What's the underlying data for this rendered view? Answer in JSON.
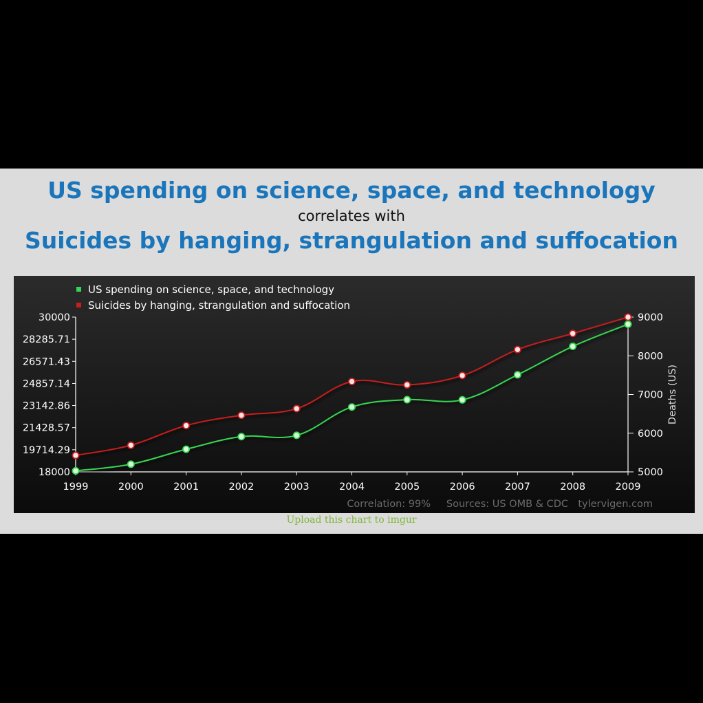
{
  "header": {
    "title1": "US spending on science, space, and technology",
    "subtitle": "correlates with",
    "title2": "Suicides by hanging, strangulation and suffocation"
  },
  "footer": {
    "upload_link": "Upload this chart to imgur"
  },
  "chart_data": {
    "type": "line",
    "x": [
      "1999",
      "2000",
      "2001",
      "2002",
      "2003",
      "2004",
      "2005",
      "2006",
      "2007",
      "2008",
      "2009"
    ],
    "series": [
      {
        "name": "US spending on science, space, and technology",
        "axis": "left",
        "color": "#35d651",
        "values": [
          18079,
          18594,
          19753,
          20734,
          20831,
          23029,
          23597,
          23584,
          25525,
          27731,
          29449
        ]
      },
      {
        "name": "Suicides by hanging, strangulation and suffocation",
        "axis": "right",
        "color": "#c81e1e",
        "values": [
          5427,
          5688,
          6198,
          6462,
          6635,
          7336,
          7248,
          7491,
          8161,
          8578,
          9000
        ]
      }
    ],
    "y_left": {
      "ylim": [
        18000,
        30000
      ],
      "ticks": [
        "18000",
        "19714.29",
        "21428.57",
        "23142.86",
        "24857.14",
        "26571.43",
        "28285.71",
        "30000"
      ]
    },
    "y_right": {
      "label": "Deaths (US)",
      "ylim": [
        5000,
        9000
      ],
      "ticks": [
        "5000",
        "6000",
        "7000",
        "8000",
        "9000"
      ]
    },
    "legend_position": "top-left",
    "credits": {
      "correlation": "Correlation: 99%",
      "sources": "Sources: US OMB & CDC",
      "site": "tylervigen.com"
    },
    "background": "#1c1c1c"
  }
}
